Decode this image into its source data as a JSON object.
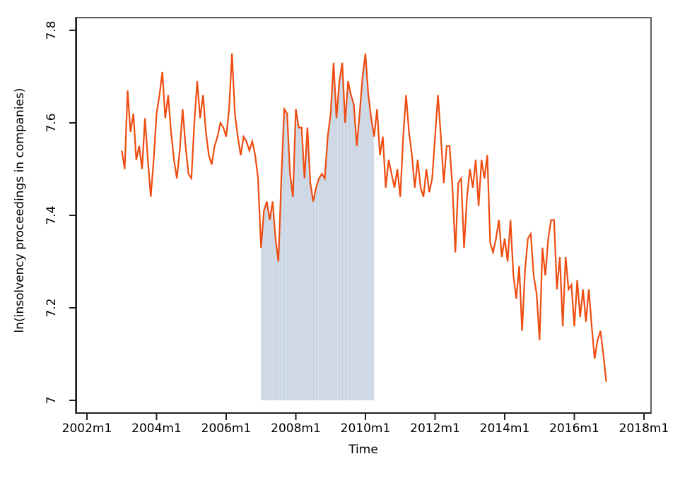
{
  "figure": {
    "background": "#ffffff",
    "frame_color": "#5e5e5e",
    "axis_color": "#1f1f1f",
    "line_color": "#ee4c11",
    "shade_fill_color": "#c7d3e1",
    "shade_stripe_color": "#dee5ee"
  },
  "chart_data": {
    "type": "line",
    "title": "",
    "xlabel": "Time",
    "ylabel": "ln(insolvency proceedings in companies)",
    "frequency": "monthly",
    "x_tick_labels": [
      "2002m1",
      "2004m1",
      "2006m1",
      "2008m1",
      "2010m1",
      "2012m1",
      "2014m1",
      "2016m1",
      "2018m1"
    ],
    "y_tick_labels": [
      "7",
      "7.2",
      "7.4",
      "7.6",
      "7.8"
    ],
    "y_ticks": [
      7,
      7.2,
      7.4,
      7.6,
      7.8
    ],
    "ylim": [
      6.97,
      7.83
    ],
    "xlim": [
      "2001m9",
      "2018m3"
    ],
    "grid": "off",
    "legend": "none",
    "shaded_region": {
      "from": "2007m1",
      "to": "2010m4",
      "style": "vertical-striped area under the series from baseline 7.0"
    },
    "series": [
      {
        "name": "ln(insolvency proceedings in companies)",
        "start": "2003m1",
        "end": "2016m12",
        "values": [
          7.54,
          7.5,
          7.67,
          7.58,
          7.62,
          7.52,
          7.55,
          7.5,
          7.61,
          7.52,
          7.44,
          7.52,
          7.62,
          7.66,
          7.71,
          7.61,
          7.66,
          7.58,
          7.52,
          7.48,
          7.54,
          7.63,
          7.55,
          7.49,
          7.48,
          7.6,
          7.69,
          7.61,
          7.66,
          7.58,
          7.53,
          7.51,
          7.55,
          7.57,
          7.6,
          7.59,
          7.57,
          7.63,
          7.75,
          7.62,
          7.57,
          7.53,
          7.57,
          7.56,
          7.54,
          7.56,
          7.53,
          7.48,
          7.33,
          7.41,
          7.43,
          7.39,
          7.43,
          7.35,
          7.3,
          7.48,
          7.63,
          7.62,
          7.49,
          7.44,
          7.63,
          7.59,
          7.59,
          7.48,
          7.59,
          7.47,
          7.43,
          7.46,
          7.48,
          7.49,
          7.48,
          7.57,
          7.62,
          7.73,
          7.61,
          7.69,
          7.73,
          7.6,
          7.69,
          7.66,
          7.64,
          7.55,
          7.62,
          7.7,
          7.75,
          7.66,
          7.61,
          7.57,
          7.63,
          7.53,
          7.57,
          7.46,
          7.52,
          7.49,
          7.46,
          7.5,
          7.44,
          7.57,
          7.66,
          7.58,
          7.53,
          7.46,
          7.52,
          7.46,
          7.44,
          7.5,
          7.45,
          7.48,
          7.57,
          7.66,
          7.57,
          7.47,
          7.55,
          7.55,
          7.46,
          7.32,
          7.47,
          7.48,
          7.33,
          7.44,
          7.5,
          7.46,
          7.52,
          7.42,
          7.52,
          7.48,
          7.53,
          7.34,
          7.32,
          7.35,
          7.39,
          7.31,
          7.35,
          7.3,
          7.39,
          7.27,
          7.22,
          7.29,
          7.15,
          7.28,
          7.35,
          7.36,
          7.27,
          7.23,
          7.13,
          7.33,
          7.27,
          7.35,
          7.39,
          7.39,
          7.24,
          7.31,
          7.16,
          7.31,
          7.24,
          7.25,
          7.16,
          7.26,
          7.18,
          7.24,
          7.17,
          7.24,
          7.16,
          7.09,
          7.13,
          7.15,
          7.1,
          7.04
        ]
      }
    ]
  }
}
